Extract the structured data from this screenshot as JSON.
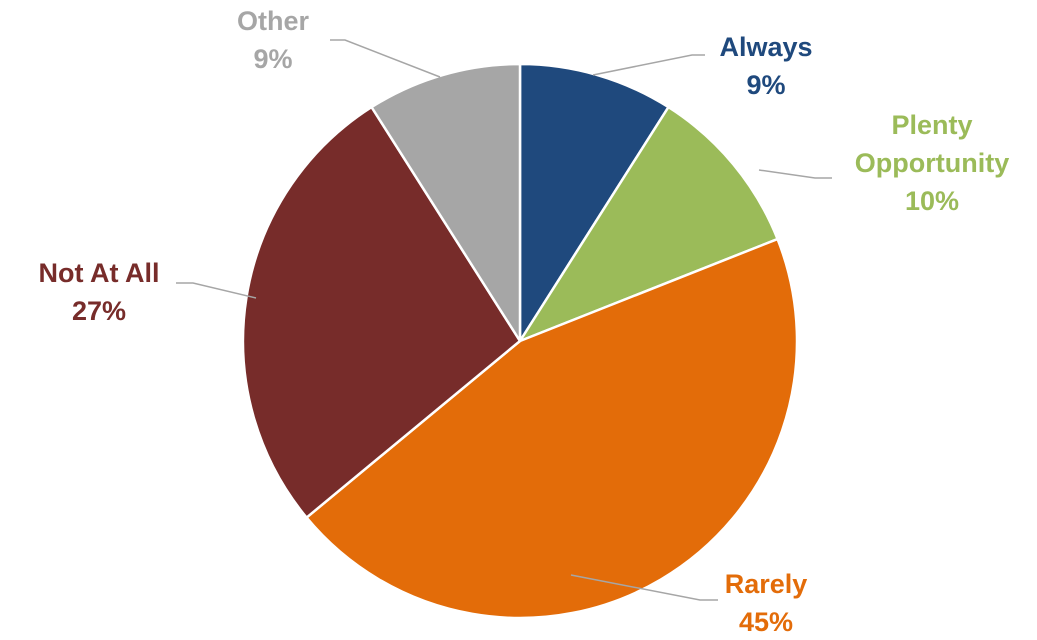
{
  "chart_data": {
    "type": "pie",
    "title": "",
    "start_angle_deg": 0,
    "direction": "clockwise",
    "slices": [
      {
        "label": [
          "Always"
        ],
        "value": 9,
        "display": "9%",
        "color": "#1f497d"
      },
      {
        "label": [
          "Plenty",
          "Opportunity"
        ],
        "value": 10,
        "display": "10%",
        "color": "#9bbb59"
      },
      {
        "label": [
          "Rarely"
        ],
        "value": 45,
        "display": "45%",
        "color": "#e36c09"
      },
      {
        "label": [
          "Not At All"
        ],
        "value": 27,
        "display": "27%",
        "color": "#772c2a"
      },
      {
        "label": [
          "Other"
        ],
        "value": 9,
        "display": "9%",
        "color": "#a6a6a6"
      }
    ],
    "legend": "none",
    "data_labels": "outside with leader lines"
  }
}
